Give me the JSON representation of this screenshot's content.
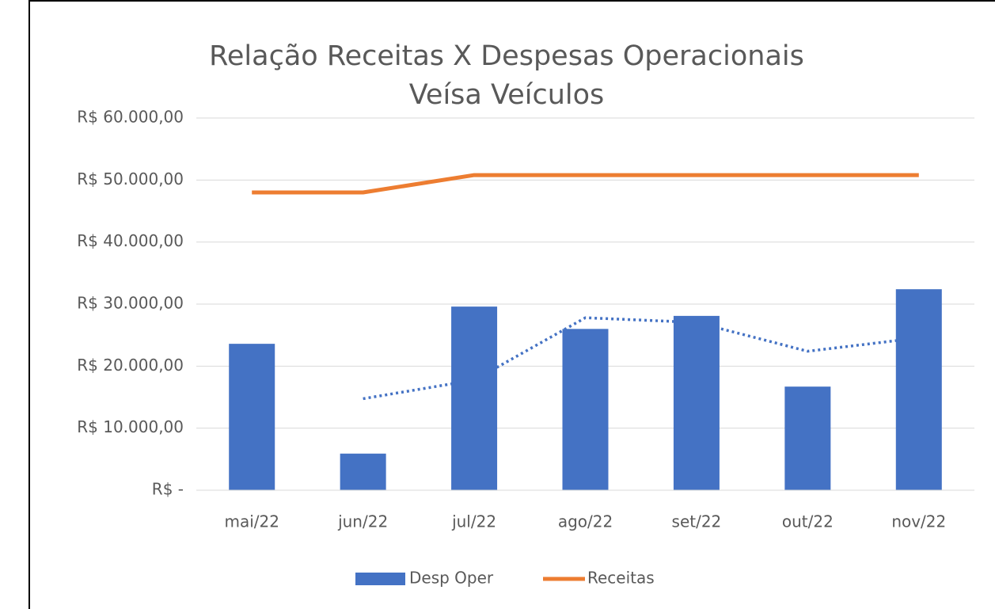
{
  "chart_data": {
    "type": "bar_line",
    "title": "Relação Receitas X Despesas Operacionais",
    "subtitle": "Veísa Veículos",
    "categories": [
      "mai/22",
      "jun/22",
      "jul/22",
      "ago/22",
      "set/22",
      "out/22",
      "nov/22"
    ],
    "series": [
      {
        "name": "Desp Oper",
        "type": "bar",
        "color": "#4472c4",
        "values": [
          23600,
          5900,
          29600,
          26000,
          28100,
          16700,
          32400
        ]
      },
      {
        "name": "Receitas",
        "type": "line",
        "color": "#ed7d31",
        "values": [
          48000,
          48000,
          50800,
          50800,
          50800,
          50800,
          50800
        ]
      }
    ],
    "trendline": {
      "color": "#4472c4",
      "style": "dotted",
      "values": [
        null,
        14750,
        17750,
        27800,
        27050,
        22400,
        24550
      ]
    },
    "ylim": [
      0,
      60000
    ],
    "yticks": [
      {
        "value": 0,
        "label": "R$ -"
      },
      {
        "value": 10000,
        "label": "R$ 10.000,00"
      },
      {
        "value": 20000,
        "label": "R$ 20.000,00"
      },
      {
        "value": 30000,
        "label": "R$ 30.000,00"
      },
      {
        "value": 40000,
        "label": "R$ 40.000,00"
      },
      {
        "value": 50000,
        "label": "R$ 50.000,00"
      },
      {
        "value": 60000,
        "label": "R$ 60.000,00"
      }
    ],
    "grid": true,
    "legend": "bottom"
  }
}
